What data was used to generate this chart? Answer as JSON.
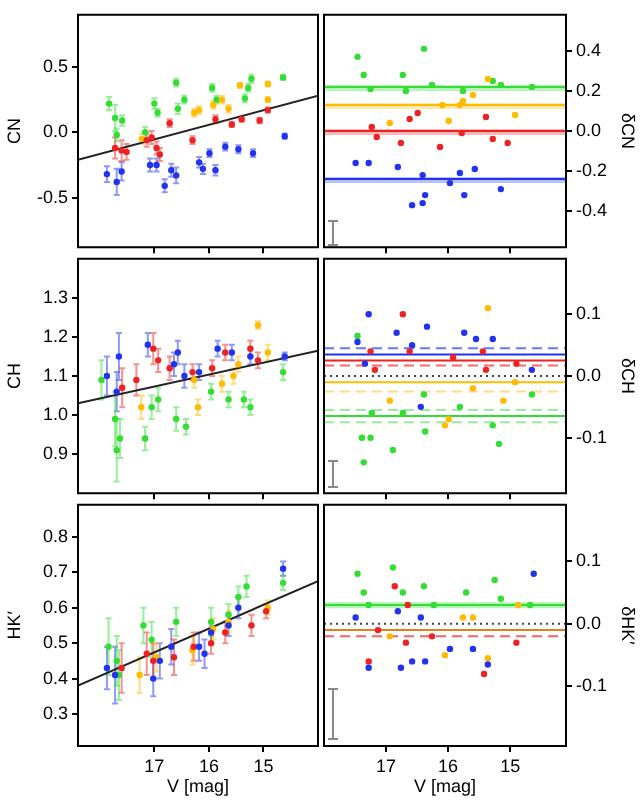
{
  "chart_data": [
    {
      "type": "scatter",
      "ylabel": "CN",
      "xlim": [
        18.4,
        14.0
      ],
      "xticks": [
        17,
        16,
        15
      ],
      "ylim": [
        -0.88,
        0.9
      ],
      "yticks": [
        {
          "value": -0.5,
          "label": "-0.5"
        },
        {
          "value": 0,
          "label": "0.0"
        },
        {
          "value": 0.5,
          "label": "0.5"
        }
      ],
      "tick_labels": "y",
      "marker": "circle",
      "series": [
        {
          "color": "#2233ee",
          "x": [
            17.87,
            17.69,
            17.6,
            17.08,
            16.96,
            16.81,
            16.69,
            16.6,
            16.18,
            16.11,
            15.99,
            15.88,
            15.7,
            15.46,
            15.19,
            14.61
          ],
          "values": [
            -0.32,
            -0.38,
            -0.3,
            -0.25,
            -0.25,
            -0.41,
            -0.29,
            -0.33,
            -0.23,
            -0.28,
            -0.16,
            -0.29,
            -0.11,
            -0.13,
            -0.16,
            -0.03
          ],
          "errors": [
            0.06,
            0.1,
            0.07,
            0.05,
            0.05,
            0.05,
            0.05,
            0.06,
            0.04,
            0.04,
            0.03,
            0.04,
            0.03,
            0.03,
            0.03,
            0.02
          ]
        },
        {
          "color": "#ee2222",
          "x": [
            17.72,
            17.6,
            17.51,
            17.14,
            17.05,
            16.96,
            16.9,
            16.72,
            16.3,
            15.88,
            15.58,
            15.4,
            15.07,
            14.92
          ],
          "values": [
            -0.12,
            -0.14,
            -0.15,
            -0.06,
            -0.04,
            -0.12,
            -0.17,
            0.07,
            -0.06,
            0.1,
            0.06,
            0.1,
            0.09,
            0.17
          ],
          "errors": [
            0.08,
            0.08,
            0.06,
            0.05,
            0.05,
            0.05,
            0.05,
            0.03,
            0.03,
            0.03,
            0.02,
            0.02,
            0.02,
            0.02
          ]
        },
        {
          "color": "#ffbb00",
          "x": [
            17.23,
            16.27,
            16.18,
            15.92,
            15.76,
            15.64,
            15.43,
            14.92,
            14.92
          ],
          "values": [
            -0.05,
            0.15,
            0.17,
            0.21,
            0.25,
            0.18,
            0.36,
            0.37,
            0.25
          ],
          "errors": [
            0.04,
            0.03,
            0.03,
            0.03,
            0.03,
            0.03,
            0.02,
            0.02,
            0.02
          ]
        },
        {
          "color": "#33dd33",
          "x": [
            17.83,
            17.72,
            17.69,
            17.59,
            17.17,
            17.0,
            16.94,
            16.6,
            16.57,
            16.45,
            15.94,
            15.86,
            15.34,
            15.28,
            15.22,
            14.64
          ],
          "values": [
            0.22,
            0.11,
            -0.02,
            0.09,
            0.0,
            0.22,
            0.15,
            0.38,
            0.18,
            0.25,
            0.34,
            0.25,
            0.26,
            0.34,
            0.41,
            0.42
          ],
          "errors": [
            0.05,
            0.1,
            0.05,
            0.04,
            0.04,
            0.04,
            0.03,
            0.03,
            0.04,
            0.03,
            0.03,
            0.03,
            0.03,
            0.03,
            0.03,
            0.02
          ]
        },
        {
          "type": "line",
          "color": "#222222",
          "x": [
            18.4,
            14.0
          ],
          "values": [
            -0.21,
            0.28
          ],
          "marker": "none"
        }
      ]
    },
    {
      "type": "scatter",
      "ylabel": "δCN",
      "xlim": [
        18.0,
        14.1
      ],
      "xticks": [
        17,
        16,
        15
      ],
      "ylim": [
        -0.58,
        0.58
      ],
      "yticks": [
        {
          "value": -0.4,
          "label": "-0.4"
        },
        {
          "value": -0.2,
          "label": "-0.2"
        },
        {
          "value": 0,
          "label": "0.0"
        },
        {
          "value": 0.2,
          "label": "0.2"
        },
        {
          "value": 0.4,
          "label": "0.4"
        }
      ],
      "tick_labels": "y",
      "marker": "circle",
      "series": [
        {
          "color": "#2233ee",
          "x": [
            17.49,
            17.28,
            16.81,
            16.58,
            16.41,
            16.41,
            16.37,
            15.97,
            15.81,
            15.74,
            15.57,
            15.15
          ],
          "values": [
            -0.16,
            -0.16,
            -0.18,
            -0.37,
            -0.36,
            -0.22,
            -0.32,
            -0.26,
            -0.21,
            -0.32,
            -0.19,
            -0.29
          ]
        },
        {
          "color": "#ee2222",
          "x": [
            17.23,
            17.15,
            16.76,
            16.62,
            16.49,
            16.13,
            15.78,
            15.39,
            15.28,
            15.04
          ],
          "values": [
            0.02,
            -0.03,
            -0.06,
            0.06,
            0.09,
            -0.08,
            -0.01,
            0.07,
            -0.04,
            -0.06
          ]
        },
        {
          "color": "#ffbb00",
          "x": [
            16.94,
            16.09,
            15.99,
            15.81,
            15.76,
            15.6,
            15.36,
            14.92
          ],
          "values": [
            0.04,
            0.13,
            0.05,
            0.13,
            0.15,
            0.18,
            0.26,
            0.08
          ]
        },
        {
          "color": "#33dd33",
          "x": [
            17.46,
            17.36,
            17.25,
            16.73,
            16.68,
            16.39,
            16.26,
            15.76,
            15.28,
            15.15,
            14.65
          ],
          "values": [
            0.37,
            0.28,
            0.21,
            0.28,
            0.2,
            0.41,
            0.23,
            0.2,
            0.25,
            0.23,
            0.22
          ]
        }
      ],
      "bands": [
        {
          "axis": "y",
          "from": 0.21,
          "to": 0.23,
          "color": "#b8f5b8"
        },
        {
          "axis": "y",
          "from": 0.12,
          "to": 0.14,
          "color": "#ffe9a8"
        },
        {
          "axis": "y",
          "from": -0.01,
          "to": 0.01,
          "color": "#f8b8b8"
        },
        {
          "axis": "y",
          "from": -0.25,
          "to": -0.23,
          "color": "#b8c0f8"
        }
      ],
      "ref_lines": [
        {
          "axis": "y",
          "value": 0.22,
          "color": "#33dd33",
          "line_style": "solid"
        },
        {
          "axis": "y",
          "value": 0.13,
          "color": "#ffbb00",
          "line_style": "solid"
        },
        {
          "axis": "y",
          "value": 0,
          "color": "#ee2222",
          "line_style": "solid"
        },
        {
          "axis": "y",
          "value": -0.24,
          "color": "#2233ee",
          "line_style": "solid"
        }
      ]
    },
    {
      "type": "scatter",
      "ylabel": "CH",
      "xlim": [
        18.4,
        14.0
      ],
      "xticks": [
        17,
        16,
        15
      ],
      "ylim": [
        0.8,
        1.4
      ],
      "yticks": [
        {
          "value": 0.9,
          "label": "0.9"
        },
        {
          "value": 1.0,
          "label": "1.0"
        },
        {
          "value": 1.1,
          "label": "1.1"
        },
        {
          "value": 1.2,
          "label": "1.2"
        },
        {
          "value": 1.3,
          "label": "1.3"
        }
      ],
      "tick_labels": "y",
      "marker": "circle",
      "series": [
        {
          "color": "#2233ee",
          "x": [
            17.87,
            17.69,
            17.65,
            17.12,
            16.64,
            16.57,
            16.45,
            16.18,
            15.84,
            15.58,
            15.24,
            14.61
          ],
          "values": [
            1.1,
            1.06,
            1.15,
            1.18,
            1.13,
            1.16,
            1.1,
            1.11,
            1.17,
            1.16,
            1.15,
            1.15
          ],
          "errors": [
            0.05,
            0.05,
            0.06,
            0.03,
            0.03,
            0.03,
            0.03,
            0.02,
            0.02,
            0.02,
            0.02,
            0.01
          ]
        },
        {
          "color": "#ee2222",
          "x": [
            17.59,
            17.33,
            17.02,
            16.93,
            16.72,
            16.3,
            15.94,
            15.7,
            15.24,
            15.1
          ],
          "values": [
            1.07,
            1.09,
            1.17,
            1.14,
            1.12,
            1.11,
            1.12,
            1.16,
            1.17,
            1.14
          ],
          "errors": [
            0.05,
            0.04,
            0.04,
            0.03,
            0.03,
            0.02,
            0.02,
            0.02,
            0.02,
            0.02
          ]
        },
        {
          "color": "#ffbb00",
          "x": [
            17.24,
            16.2,
            16.27,
            15.76,
            15.55,
            15.46,
            15.1,
            14.92
          ],
          "values": [
            1.02,
            1.02,
            1.09,
            1.08,
            1.1,
            1.13,
            1.23,
            1.16
          ],
          "errors": [
            0.03,
            0.02,
            0.02,
            0.02,
            0.02,
            0.02,
            0.01,
            0.02
          ]
        },
        {
          "color": "#33dd33",
          "x": [
            17.97,
            17.72,
            17.69,
            17.63,
            17.17,
            17.05,
            16.93,
            16.6,
            16.42,
            15.96,
            15.64,
            15.36,
            15.24,
            14.64
          ],
          "values": [
            1.09,
            0.99,
            0.91,
            0.94,
            0.94,
            1.02,
            1.04,
            0.99,
            0.97,
            1.06,
            1.04,
            1.04,
            1.02,
            1.11
          ],
          "errors": [
            0.05,
            0.07,
            0.08,
            0.05,
            0.03,
            0.03,
            0.03,
            0.03,
            0.02,
            0.02,
            0.02,
            0.02,
            0.02,
            0.02
          ]
        },
        {
          "type": "line",
          "color": "#222222",
          "x": [
            18.4,
            14.0
          ],
          "values": [
            1.03,
            1.165
          ],
          "marker": "none"
        }
      ]
    },
    {
      "type": "scatter",
      "ylabel": "δCH",
      "xlim": [
        18.0,
        14.1
      ],
      "xticks": [
        17,
        16,
        15
      ],
      "ylim": [
        -0.19,
        0.19
      ],
      "yticks": [
        {
          "value": -0.1,
          "label": "-0.1"
        },
        {
          "value": 0,
          "label": "0.0"
        },
        {
          "value": 0.1,
          "label": "0.1"
        }
      ],
      "tick_labels": "y",
      "marker": "circle",
      "series": [
        {
          "color": "#2233ee",
          "x": [
            17.46,
            17.34,
            17.28,
            16.83,
            16.58,
            16.44,
            16.34,
            15.74,
            15.55,
            15.28,
            14.65
          ],
          "values": [
            0.055,
            0.02,
            0.1,
            0.07,
            0.05,
            -0.05,
            0.08,
            0.07,
            0.06,
            0.06,
            0.01
          ]
        },
        {
          "color": "#ee2222",
          "x": [
            17.25,
            17.18,
            16.73,
            16.62,
            15.92,
            15.44,
            15.39,
            14.9
          ],
          "values": [
            0.04,
            0.01,
            0.1,
            0.04,
            0.03,
            0.04,
            0.01,
            0.02
          ]
        },
        {
          "color": "#ffbb00",
          "x": [
            16.94,
            16.05,
            15.99,
            15.6,
            15.36,
            15.11,
            14.92
          ],
          "values": [
            -0.04,
            -0.08,
            -0.07,
            -0.02,
            0.11,
            -0.04,
            -0.01
          ]
        },
        {
          "color": "#33dd33",
          "x": [
            17.46,
            17.39,
            17.36,
            17.25,
            17.23,
            16.89,
            16.73,
            16.39,
            16.37,
            15.81,
            15.28,
            15.18,
            14.65
          ],
          "values": [
            0.065,
            -0.1,
            -0.14,
            -0.1,
            -0.06,
            -0.12,
            -0.06,
            -0.03,
            -0.09,
            -0.05,
            -0.08,
            -0.11,
            -0.03
          ]
        }
      ],
      "ref_lines": [
        {
          "axis": "y",
          "value": 0.045,
          "color": "#6677ff",
          "line_style": "dashed"
        },
        {
          "axis": "y",
          "value": 0.035,
          "color": "#2233ee",
          "line_style": "solid"
        },
        {
          "axis": "y",
          "value": 0.025,
          "color": "#ee2222",
          "line_style": "solid"
        },
        {
          "axis": "y",
          "value": 0.017,
          "color": "#ff6666",
          "line_style": "dashed"
        },
        {
          "axis": "y",
          "value": 0,
          "color": "#444444",
          "line_style": "dotted"
        },
        {
          "axis": "y",
          "value": -0.01,
          "color": "#ffbb00",
          "line_style": "solid"
        },
        {
          "axis": "y",
          "value": -0.025,
          "color": "#ffdd88",
          "line_style": "dashed"
        },
        {
          "axis": "y",
          "value": -0.055,
          "color": "#99ee99",
          "line_style": "dashed"
        },
        {
          "axis": "y",
          "value": -0.065,
          "color": "#33dd33",
          "line_style": "solid"
        },
        {
          "axis": "y",
          "value": -0.075,
          "color": "#99ee99",
          "line_style": "dashed"
        }
      ]
    },
    {
      "type": "scatter",
      "ylabel": "HK′",
      "xlabel": "V [mag]",
      "xlim": [
        18.4,
        14.0
      ],
      "xticks": [
        17,
        16,
        15
      ],
      "ylim": [
        0.21,
        0.89
      ],
      "yticks": [
        {
          "value": 0.3,
          "label": "0.3"
        },
        {
          "value": 0.4,
          "label": "0.4"
        },
        {
          "value": 0.5,
          "label": "0.5"
        },
        {
          "value": 0.6,
          "label": "0.6"
        },
        {
          "value": 0.7,
          "label": "0.7"
        },
        {
          "value": 0.8,
          "label": "0.8"
        }
      ],
      "marker": "circle",
      "series": [
        {
          "color": "#2233ee",
          "x": [
            17.87,
            17.72,
            17.02,
            16.9,
            16.69,
            16.18,
            16.08,
            15.96,
            15.64,
            15.46,
            14.64
          ],
          "values": [
            0.43,
            0.41,
            0.4,
            0.45,
            0.49,
            0.49,
            0.47,
            0.53,
            0.55,
            0.6,
            0.71
          ],
          "errors": [
            0.06,
            0.08,
            0.05,
            0.05,
            0.05,
            0.04,
            0.04,
            0.03,
            0.03,
            0.03,
            0.02
          ]
        },
        {
          "color": "#ee2222",
          "x": [
            17.6,
            17.14,
            17.02,
            16.64,
            16.28,
            15.96,
            15.7,
            15.22,
            14.95
          ],
          "values": [
            0.43,
            0.47,
            0.45,
            0.46,
            0.49,
            0.5,
            0.53,
            0.55,
            0.59
          ],
          "errors": [
            0.07,
            0.06,
            0.05,
            0.05,
            0.04,
            0.03,
            0.03,
            0.03,
            0.02
          ]
        },
        {
          "color": "#ffbb00",
          "x": [
            17.27,
            16.96,
            16.3,
            15.92,
            15.64,
            14.92
          ],
          "values": [
            0.41,
            0.46,
            0.48,
            0.54,
            0.56,
            0.6
          ],
          "errors": [
            0.05,
            0.04,
            0.04,
            0.03,
            0.03,
            0.02
          ]
        },
        {
          "color": "#33dd33",
          "x": [
            17.84,
            17.69,
            17.65,
            17.2,
            17.05,
            16.6,
            15.96,
            15.64,
            15.46,
            15.31,
            14.64
          ],
          "values": [
            0.49,
            0.45,
            0.41,
            0.55,
            0.51,
            0.56,
            0.56,
            0.58,
            0.63,
            0.66,
            0.67
          ],
          "errors": [
            0.08,
            0.07,
            0.07,
            0.05,
            0.05,
            0.04,
            0.04,
            0.03,
            0.03,
            0.03,
            0.02
          ]
        },
        {
          "type": "line",
          "color": "#222222",
          "x": [
            18.4,
            14.0
          ],
          "values": [
            0.38,
            0.675
          ],
          "marker": "none"
        }
      ]
    },
    {
      "type": "scatter",
      "ylabel": "δHK′",
      "xlabel": "V [mag]",
      "xlim": [
        18.0,
        14.1
      ],
      "xticks": [
        17,
        16,
        15
      ],
      "ylim": [
        -0.195,
        0.19
      ],
      "yticks": [
        {
          "value": -0.1,
          "label": "-0.1"
        },
        {
          "value": 0,
          "label": "0.0"
        },
        {
          "value": 0.1,
          "label": "0.1"
        }
      ],
      "marker": "circle",
      "series": [
        {
          "color": "#2233ee",
          "x": [
            17.49,
            17.28,
            16.81,
            16.76,
            16.58,
            16.44,
            16.37,
            15.97,
            15.6,
            15.36,
            14.62
          ],
          "values": [
            0.01,
            -0.07,
            0.02,
            -0.07,
            -0.06,
            0.01,
            -0.06,
            -0.04,
            -0.04,
            -0.065,
            0.08
          ]
        },
        {
          "color": "#ee2222",
          "x": [
            17.28,
            17.13,
            16.86,
            16.68,
            16.65,
            16.26,
            15.42,
            14.9
          ],
          "values": [
            -0.06,
            -0.01,
            0.06,
            -0.03,
            0.03,
            -0.02,
            -0.08,
            -0.03
          ]
        },
        {
          "color": "#ffbb00",
          "x": [
            16.94,
            16.05,
            15.76,
            15.6,
            15.36,
            14.87
          ],
          "values": [
            -0.02,
            -0.05,
            0.01,
            0.01,
            -0.055,
            0.03
          ]
        },
        {
          "color": "#33dd33",
          "x": [
            17.46,
            17.36,
            17.28,
            16.89,
            16.73,
            16.39,
            16.23,
            15.71,
            15.25,
            15.15,
            14.68
          ],
          "values": [
            0.08,
            0.05,
            0.03,
            0.09,
            0.05,
            0.06,
            0.03,
            0.05,
            0.07,
            0.04,
            0.03
          ]
        }
      ],
      "bands": [
        {
          "axis": "y",
          "from": 0.025,
          "to": 0.035,
          "color": "#b8f5b8"
        }
      ],
      "ref_lines": [
        {
          "axis": "y",
          "value": 0.03,
          "color": "#33dd33",
          "line_style": "solid"
        },
        {
          "axis": "y",
          "value": 0,
          "color": "#444444",
          "line_style": "dotted"
        },
        {
          "axis": "y",
          "value": -0.01,
          "color": "#e08020",
          "line_style": "solid"
        },
        {
          "axis": "y",
          "value": -0.02,
          "color": "#ee6666",
          "line_style": "dashed"
        }
      ]
    }
  ]
}
